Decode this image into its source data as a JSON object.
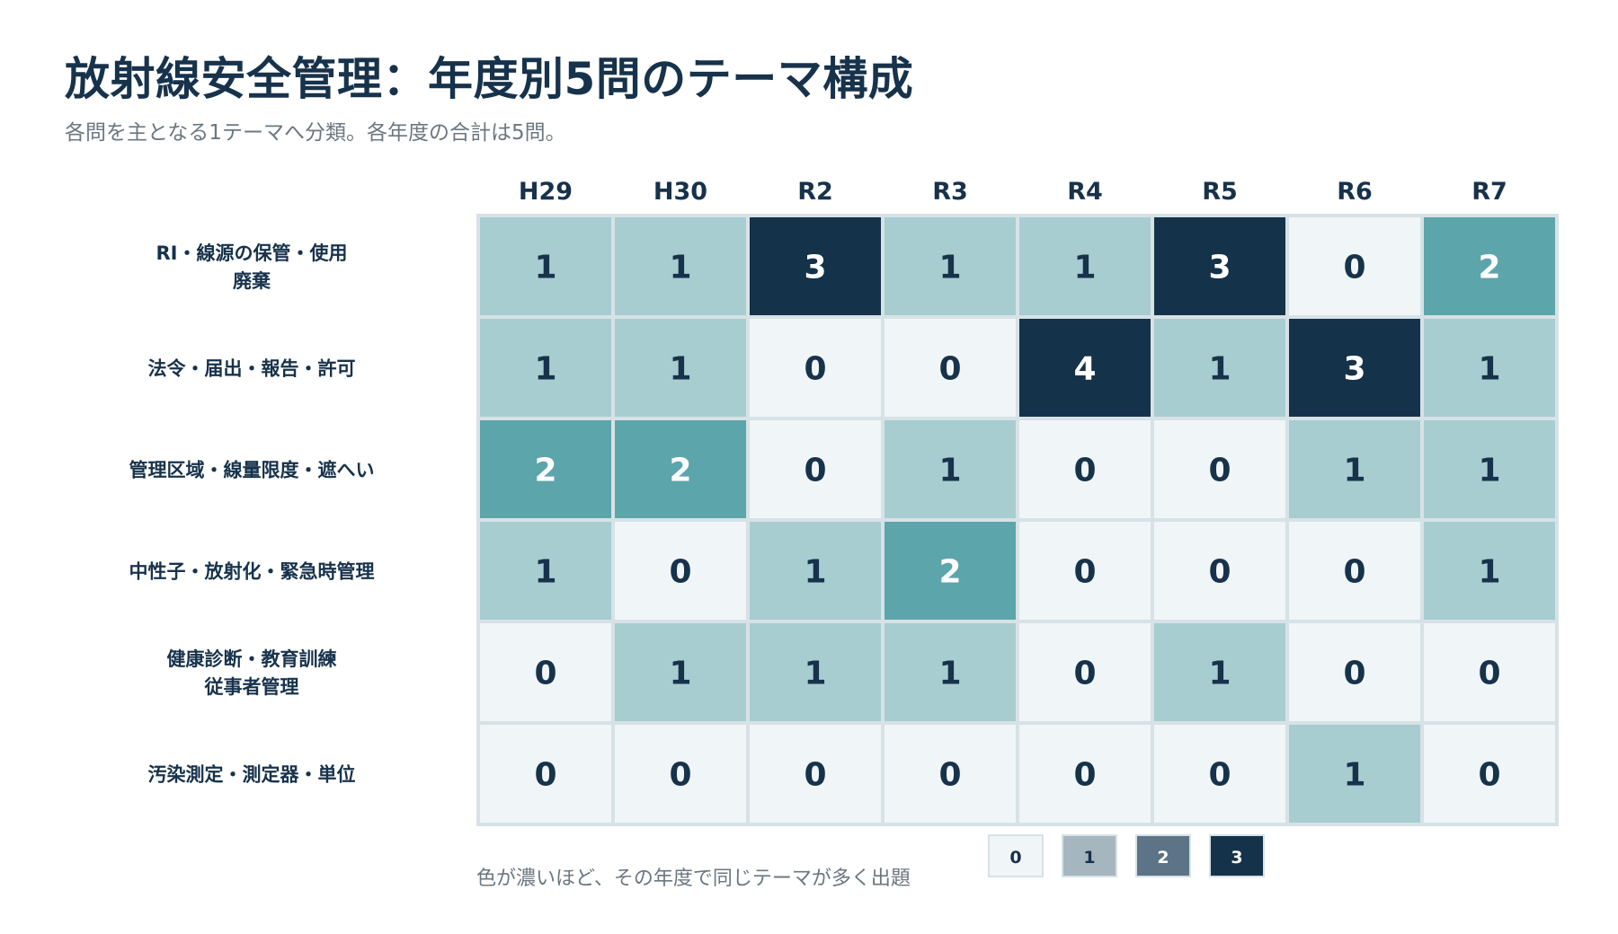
{
  "title": "放射線安全管理：年度別5問のテーマ構成",
  "subtitle": "各問を主となる1テーマへ分類。各年度の合計は5問。",
  "colors": {
    "level0": "#f0f5f7",
    "level1": "#a7cdd1",
    "level2": "#5ca5ab",
    "level3": "#14324a",
    "text_dark": "#17324b",
    "text_light": "#ffffff",
    "grid": "#d7e2e6"
  },
  "chart_data": {
    "type": "heatmap",
    "x": [
      "H29",
      "H30",
      "R2",
      "R3",
      "R4",
      "R5",
      "R6",
      "R7"
    ],
    "y": [
      [
        "RI・線源の保管・使用",
        "廃棄"
      ],
      [
        "法令・届出・報告・許可"
      ],
      [
        "管理区域・線量限度・遮へい"
      ],
      [
        "中性子・放射化・緊急時管理"
      ],
      [
        "健康診断・教育訓練",
        "従事者管理"
      ],
      [
        "汚染測定・測定器・単位"
      ]
    ],
    "values": [
      [
        1,
        1,
        3,
        1,
        1,
        3,
        0,
        2
      ],
      [
        1,
        1,
        0,
        0,
        4,
        1,
        3,
        1
      ],
      [
        2,
        2,
        0,
        1,
        0,
        0,
        1,
        1
      ],
      [
        1,
        0,
        1,
        2,
        0,
        0,
        0,
        1
      ],
      [
        0,
        1,
        1,
        1,
        0,
        1,
        0,
        0
      ],
      [
        0,
        0,
        0,
        0,
        0,
        0,
        1,
        0
      ]
    ],
    "legend": {
      "text": "色が濃いほど、その年度で同じテーマが多く出題",
      "levels": [
        "0",
        "1",
        "2",
        "3"
      ],
      "colors": [
        "#f0f5f7",
        "#a5b6bf",
        "#5c7485",
        "#14324a"
      ]
    }
  }
}
